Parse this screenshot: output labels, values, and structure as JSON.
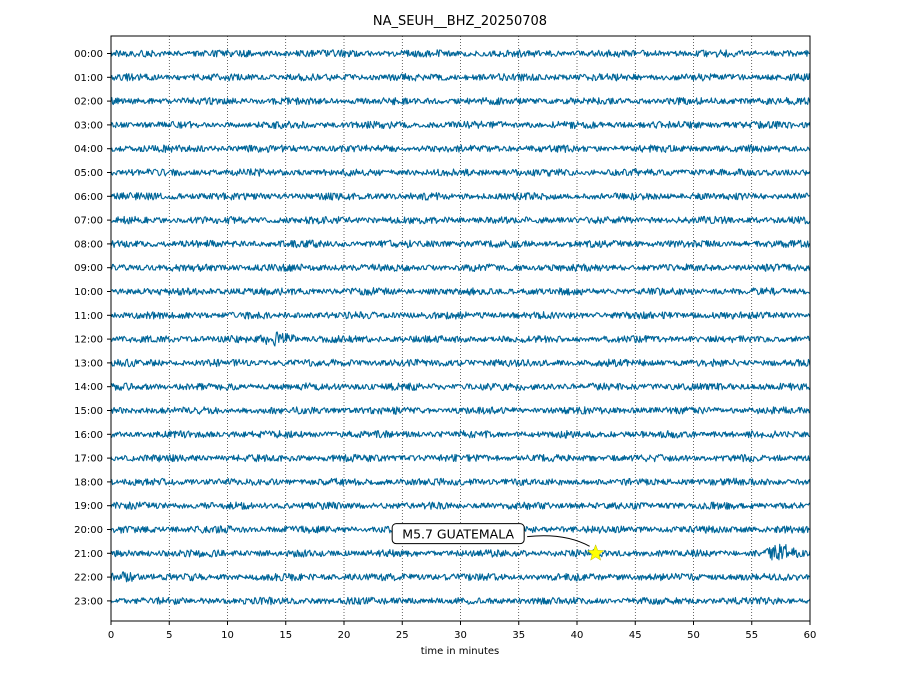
{
  "chart_data": {
    "type": "line",
    "title": "NA_SEUH__BHZ_20250708",
    "xlabel": "time in minutes",
    "ylabel": "",
    "xlim": [
      0,
      60
    ],
    "x_ticks": [
      0,
      5,
      10,
      15,
      20,
      25,
      30,
      35,
      40,
      45,
      50,
      55,
      60
    ],
    "hour_labels": [
      "00:00",
      "01:00",
      "02:00",
      "03:00",
      "04:00",
      "05:00",
      "06:00",
      "07:00",
      "08:00",
      "09:00",
      "10:00",
      "11:00",
      "12:00",
      "13:00",
      "14:00",
      "15:00",
      "16:00",
      "17:00",
      "18:00",
      "19:00",
      "20:00",
      "21:00",
      "22:00",
      "23:00"
    ],
    "vertical_grid": "dotted",
    "trace_color": "#006699",
    "event": {
      "label": "M5.7 GUATEMALA",
      "hour_index": 21,
      "minute": 41.6,
      "marker": "star",
      "marker_color": "#ffff00",
      "label_minute": 29.8,
      "label_hour_offset": 20.3
    },
    "bursts": [
      {
        "hour_index": 12,
        "minute": 14.5,
        "amplitude": 2.0
      },
      {
        "hour_index": 21,
        "minute": 57.5,
        "amplitude": 1.8
      },
      {
        "hour_index": 22,
        "minute": 1.0,
        "amplitude": 1.3
      }
    ]
  }
}
